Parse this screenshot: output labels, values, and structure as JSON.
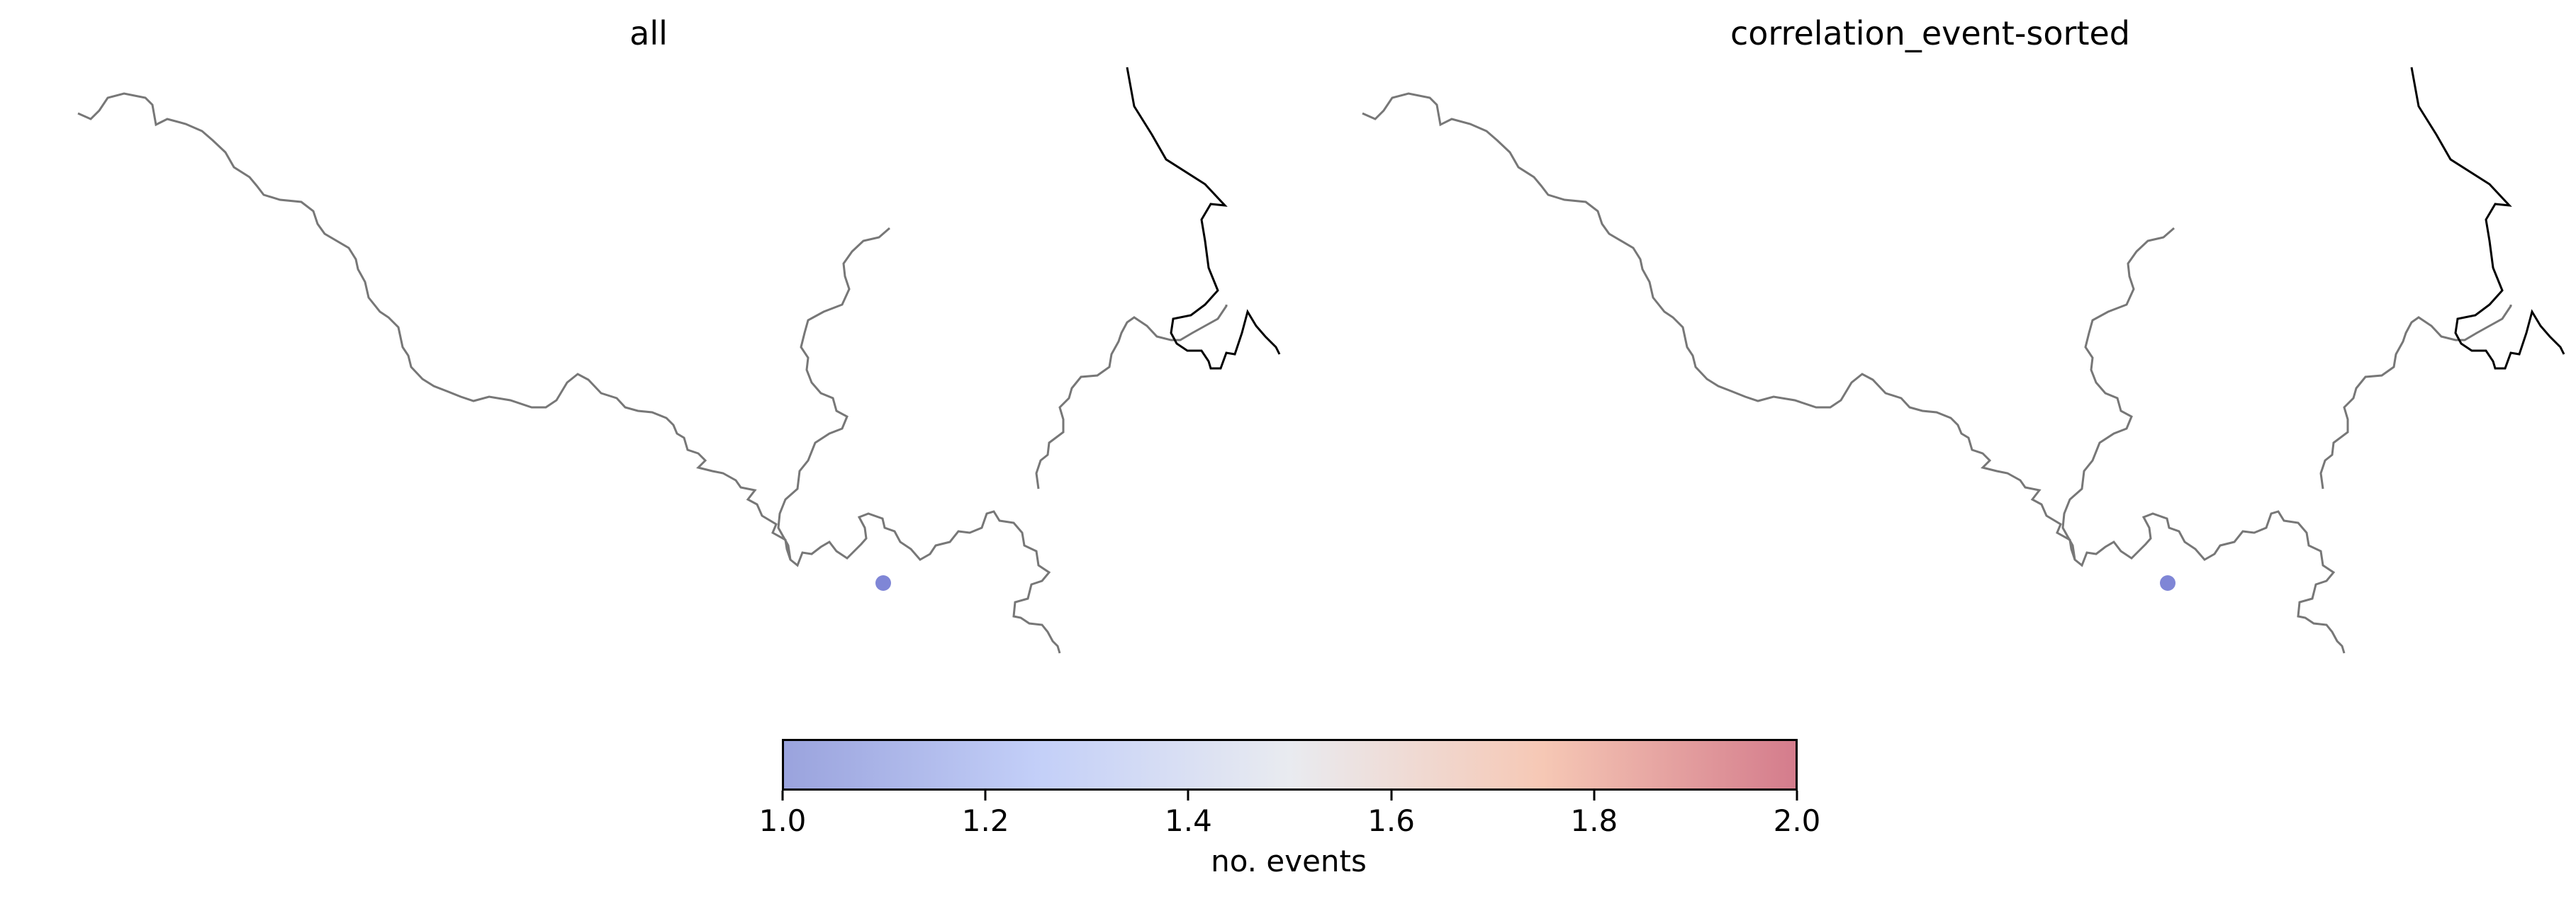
{
  "panels": [
    {
      "title": "all",
      "events": [
        {
          "count": 1
        }
      ]
    },
    {
      "title": "correlation_event-sorted",
      "events": [
        {
          "count": 1
        }
      ]
    }
  ],
  "colorbar": {
    "label": "no. events",
    "range": [
      1.0,
      2.0
    ],
    "ticks": [
      "1.0",
      "1.2",
      "1.4",
      "1.6",
      "1.8",
      "2.0"
    ],
    "colormap": "coolwarm",
    "colors": [
      "#9aa3dd",
      "#c3cff8",
      "#e9ebf0",
      "#f6c8b5",
      "#d47c8c"
    ]
  },
  "colors": {
    "river": "#777777",
    "coastline": "#000000",
    "event_marker": "#7f86d6"
  }
}
